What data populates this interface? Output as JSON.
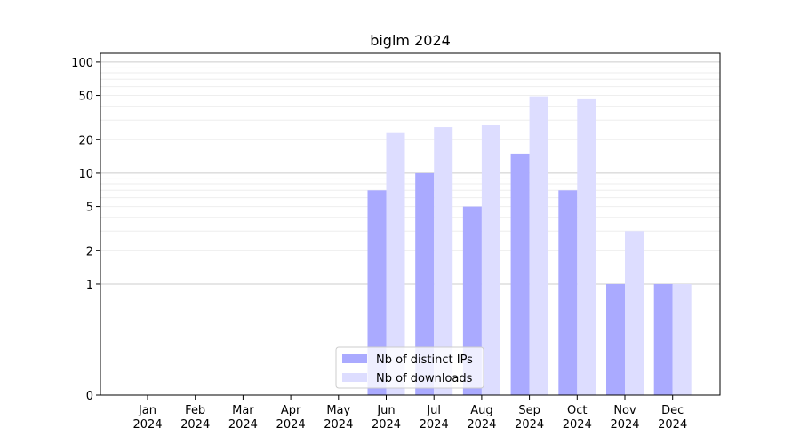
{
  "chart_data": {
    "type": "bar",
    "title": "biglm 2024",
    "xlabel": "",
    "ylabel": "",
    "y_scale": "symlog",
    "ylim": [
      0,
      120
    ],
    "y_ticks": [
      0,
      1,
      2,
      5,
      10,
      20,
      50,
      100
    ],
    "grid": "y",
    "legend_position": "lower-center",
    "categories": [
      [
        "Jan",
        "2024"
      ],
      [
        "Feb",
        "2024"
      ],
      [
        "Mar",
        "2024"
      ],
      [
        "Apr",
        "2024"
      ],
      [
        "May",
        "2024"
      ],
      [
        "Jun",
        "2024"
      ],
      [
        "Jul",
        "2024"
      ],
      [
        "Aug",
        "2024"
      ],
      [
        "Sep",
        "2024"
      ],
      [
        "Oct",
        "2024"
      ],
      [
        "Nov",
        "2024"
      ],
      [
        "Dec",
        "2024"
      ]
    ],
    "series": [
      {
        "name": "Nb of distinct IPs",
        "color": "#aaaaff",
        "values": [
          0,
          0,
          0,
          0,
          0,
          7,
          10,
          5,
          15,
          7,
          1,
          1
        ]
      },
      {
        "name": "Nb of downloads",
        "color": "#ddddff",
        "values": [
          0,
          0,
          0,
          0,
          0,
          23,
          26,
          27,
          49,
          47,
          3,
          1
        ]
      }
    ]
  }
}
